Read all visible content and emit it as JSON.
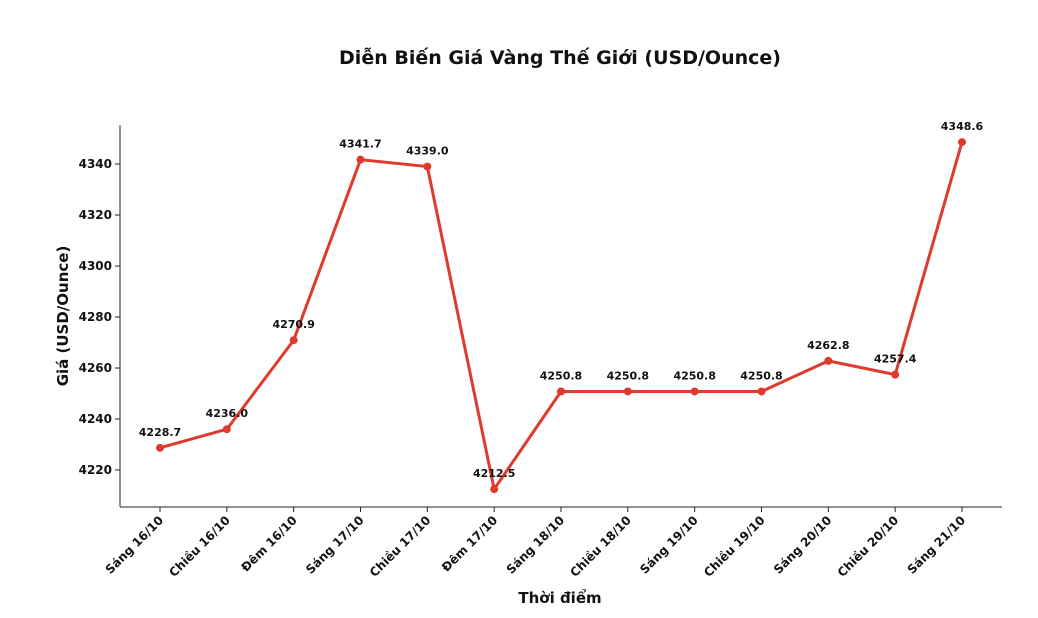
{
  "chart_data": {
    "type": "line",
    "title": "Diễn Biến Giá Vàng Thế Giới (USD/Ounce)",
    "x_label": "Thời điểm",
    "y_label": "Giá (USD/Ounce)",
    "categories": [
      "Sáng 16/10",
      "Chiều 16/10",
      "Đêm 16/10",
      "Sáng 17/10",
      "Chiều 17/10",
      "Đêm 17/10",
      "Sáng 18/10",
      "Chiều 18/10",
      "Sáng 19/10",
      "Chiều 19/10",
      "Sáng 20/10",
      "Chiều 20/10",
      "Sáng 21/10"
    ],
    "values": [
      4228.7,
      4236.0,
      4270.9,
      4341.7,
      4339.0,
      4212.5,
      4250.8,
      4250.8,
      4250.8,
      4250.8,
      4262.8,
      4257.4,
      4348.6
    ],
    "value_labels": [
      "4228.7",
      "4236.0",
      "4270.9",
      "4341.7",
      "4339.0",
      "4212.5",
      "4250.8",
      "4250.8",
      "4250.8",
      "4250.8",
      "4262.8",
      "4257.4",
      "4348.6"
    ],
    "color": "#e03a2f",
    "ylim": [
      4205.5,
      4355.3
    ],
    "yticks": [
      4220,
      4240,
      4260,
      4280,
      4300,
      4320,
      4340
    ]
  }
}
